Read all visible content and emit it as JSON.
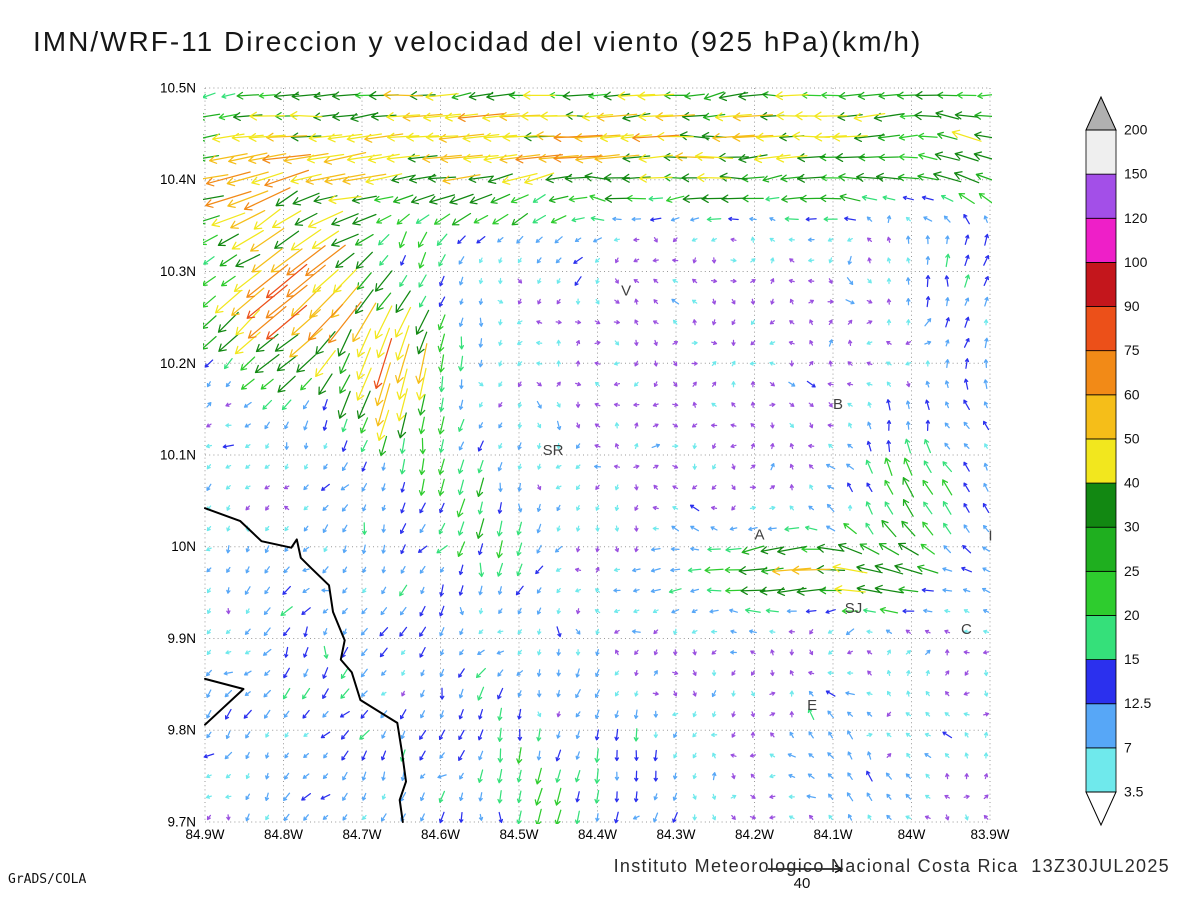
{
  "title": "IMN/WRF-11 Direccion y velocidad del viento (925 hPa)(km/h)",
  "footer": {
    "institute": "Instituto Meteorologico Nacional Costa Rica  13Z30JUL2025",
    "credit": "GrADS/COLA"
  },
  "chart_data": {
    "type": "vector-field",
    "description": "Wind direction and speed (km/h) at 925 hPa over central Costa Rica, WRF-11 model, arrows colored by wind speed",
    "x_axis": {
      "range": [
        84.9,
        83.9
      ],
      "ticks": [
        {
          "label": "84.9W",
          "value": 84.9
        },
        {
          "label": "84.8W",
          "value": 84.8
        },
        {
          "label": "84.7W",
          "value": 84.7
        },
        {
          "label": "84.6W",
          "value": 84.6
        },
        {
          "label": "84.5W",
          "value": 84.5
        },
        {
          "label": "84.4W",
          "value": 84.4
        },
        {
          "label": "84.3W",
          "value": 84.3
        },
        {
          "label": "84.2W",
          "value": 84.2
        },
        {
          "label": "84.1W",
          "value": 84.1
        },
        {
          "label": "84W",
          "value": 84.0
        },
        {
          "label": "83.9W",
          "value": 83.9
        }
      ]
    },
    "y_axis": {
      "range": [
        9.7,
        10.5
      ],
      "ticks": [
        {
          "label": "10.5N",
          "value": 10.5
        },
        {
          "label": "10.4N",
          "value": 10.4
        },
        {
          "label": "10.3N",
          "value": 10.3
        },
        {
          "label": "10.2N",
          "value": 10.2
        },
        {
          "label": "10.1N",
          "value": 10.1
        },
        {
          "label": "10N",
          "value": 10.0
        },
        {
          "label": "9.9N",
          "value": 9.9
        },
        {
          "label": "9.8N",
          "value": 9.8
        },
        {
          "label": "9.7N",
          "value": 9.7
        }
      ]
    },
    "grid": {
      "on": true,
      "style": "dotted",
      "color": "#9a9a9a"
    },
    "colorbar": {
      "levels": [
        3.5,
        7,
        12.5,
        15,
        20,
        25,
        30,
        40,
        50,
        60,
        75,
        90,
        100,
        120,
        150,
        200
      ],
      "labels": [
        "3.5",
        "7",
        "12.5",
        "15",
        "20",
        "25",
        "30",
        "40",
        "50",
        "60",
        "75",
        "90",
        "100",
        "120",
        "150",
        "200"
      ],
      "colors": [
        "#6FE9EC",
        "#57A7F7",
        "#2B30EE",
        "#35E07A",
        "#2ECC2E",
        "#1FAF1F",
        "#128812",
        "#F2E71E",
        "#F5BE19",
        "#F28A17",
        "#EC5019",
        "#C4161C",
        "#EE1FC8",
        "#A34FE8",
        "#EFEFEF"
      ],
      "under_color": "#FFFFFF",
      "over_color": "#B0B0B0",
      "calm_color": "#9A50E0"
    },
    "reference_vector": {
      "label": "40",
      "length_kmh": 40
    },
    "stations": [
      {
        "label": "V",
        "lon": 84.37,
        "lat": 10.274
      },
      {
        "label": "B",
        "lon": 84.1,
        "lat": 10.15
      },
      {
        "label": "SR",
        "lon": 84.47,
        "lat": 10.1
      },
      {
        "label": "A",
        "lon": 84.2,
        "lat": 10.008
      },
      {
        "label": "SJ",
        "lon": 84.085,
        "lat": 9.928
      },
      {
        "label": "C",
        "lon": 83.937,
        "lat": 9.905
      },
      {
        "label": "E",
        "lon": 84.133,
        "lat": 9.822
      },
      {
        "label": "I",
        "lon": 83.902,
        "lat": 10.007
      }
    ],
    "coastlines": [
      [
        [
          84.9,
          10.042
        ],
        [
          84.855,
          10.028
        ],
        [
          84.828,
          10.006
        ],
        [
          84.79,
          9.999
        ],
        [
          84.783,
          10.008
        ],
        [
          84.778,
          9.988
        ],
        [
          84.765,
          9.977
        ],
        [
          84.742,
          9.958
        ],
        [
          84.737,
          9.929
        ],
        [
          84.722,
          9.898
        ],
        [
          84.727,
          9.877
        ],
        [
          84.713,
          9.863
        ],
        [
          84.702,
          9.833
        ],
        [
          84.655,
          9.808
        ],
        [
          84.649,
          9.776
        ],
        [
          84.644,
          9.744
        ],
        [
          84.652,
          9.724
        ],
        [
          84.648,
          9.7
        ]
      ],
      [
        [
          84.9,
          9.806
        ],
        [
          84.851,
          9.845
        ],
        [
          84.9,
          9.856
        ]
      ]
    ],
    "flow": {
      "grid": {
        "lon_start": 84.895,
        "lon_end": 83.905,
        "cols": 41,
        "lat_start": 10.492,
        "lat_end": 9.705,
        "rows": 36
      },
      "length_scale": 0.75,
      "length_min": 5,
      "length_max": 52,
      "base": {
        "amp1": 2.6,
        "amp2": 1.8,
        "jitter": 3
      },
      "features": [
        {
          "name": "north-easterly-jet",
          "lon": 84.4,
          "lat": 10.47,
          "slon": 0.7,
          "slat": 0.05,
          "u": -36,
          "v": -3
        },
        {
          "name": "north-band",
          "lon": 84.4,
          "lat": 10.4,
          "slon": 0.7,
          "slat": 0.035,
          "u": -20,
          "v": 0
        },
        {
          "name": "northwest-gust-patch",
          "lon": 84.83,
          "lat": 10.39,
          "slon": 0.08,
          "slat": 0.035,
          "u": -22,
          "v": -10
        },
        {
          "name": "northwest-sw-jet",
          "lon": 84.79,
          "lat": 10.27,
          "slon": 0.075,
          "slat": 0.06,
          "u": -52,
          "v": -42
        },
        {
          "name": "west-southward-jet",
          "lon": 84.66,
          "lat": 10.19,
          "slon": 0.055,
          "slat": 0.055,
          "u": -10,
          "v": -52
        },
        {
          "name": "central-downflow",
          "lon": 84.55,
          "lat": 10.03,
          "slon": 0.07,
          "slat": 0.06,
          "u": -4,
          "v": -18
        },
        {
          "name": "midtop-yellow-patch",
          "lon": 84.45,
          "lat": 10.45,
          "slon": 0.16,
          "slat": 0.028,
          "u": -13,
          "v": 0
        },
        {
          "name": "sanjose-west-jet",
          "lon": 84.13,
          "lat": 9.97,
          "slon": 0.12,
          "slat": 0.032,
          "u": -40,
          "v": -3
        },
        {
          "name": "sanjose-north-curl",
          "lon": 84.03,
          "lat": 10.04,
          "slon": 0.05,
          "slat": 0.05,
          "u": -8,
          "v": 20
        },
        {
          "name": "pacific-drainage",
          "lon": 84.75,
          "lat": 9.85,
          "slon": 0.17,
          "slat": 0.16,
          "u": -7,
          "v": -9
        },
        {
          "name": "south-central-southerly",
          "lon": 84.45,
          "lat": 9.74,
          "slon": 0.12,
          "slat": 0.08,
          "u": -2,
          "v": -16
        },
        {
          "name": "east-edge-northerly",
          "lon": 83.93,
          "lat": 10.33,
          "slon": 0.06,
          "slat": 0.1,
          "u": 5,
          "v": 13
        },
        {
          "name": "upper-mid-downdraft",
          "lon": 84.55,
          "lat": 10.35,
          "slon": 0.09,
          "slat": 0.05,
          "u": -5,
          "v": -12
        },
        {
          "name": "east-mid-upflow",
          "lon": 83.95,
          "lat": 10.08,
          "slon": 0.07,
          "slat": 0.09,
          "u": -6,
          "v": 10
        },
        {
          "name": "southeast-upflow",
          "lon": 84.07,
          "lat": 9.77,
          "slon": 0.07,
          "slat": 0.05,
          "u": -8,
          "v": 10
        }
      ]
    }
  }
}
